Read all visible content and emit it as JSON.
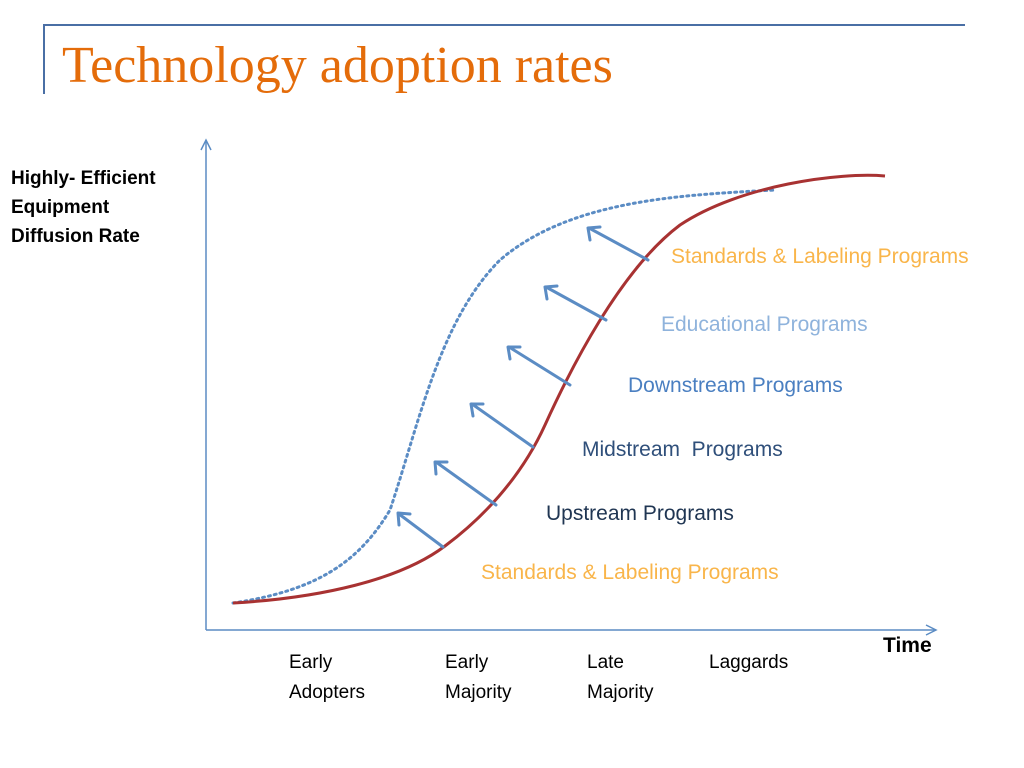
{
  "slide": {
    "title": "Technology adoption rates"
  },
  "axes": {
    "y_label_lines": [
      "Highly- Efficient",
      "Equipment",
      "Diffusion Rate"
    ],
    "x_label": "Time"
  },
  "categories": [
    {
      "line1": "Early",
      "line2": "Adopters"
    },
    {
      "line1": "Early",
      "line2": "Majority"
    },
    {
      "line1": "Late",
      "line2": "Majority"
    },
    {
      "line1": "Laggards",
      "line2": ""
    }
  ],
  "programs": [
    {
      "label": "Standards & Labeling Programs",
      "color": "#f9b54a"
    },
    {
      "label": "Educational Programs",
      "color": "#8fb3dc"
    },
    {
      "label": "Downstream Programs",
      "color": "#4a7fc1"
    },
    {
      "label": "Midstream  Programs",
      "color": "#2f4f7a"
    },
    {
      "label": "Upstream Programs",
      "color": "#1f3552"
    },
    {
      "label": "Standards & Labeling Programs",
      "color": "#f9b54a"
    }
  ],
  "curves": {
    "baseline_color": "#a83232",
    "accelerated_color": "#5b8cc4",
    "arrow_color": "#5b8cc4"
  }
}
